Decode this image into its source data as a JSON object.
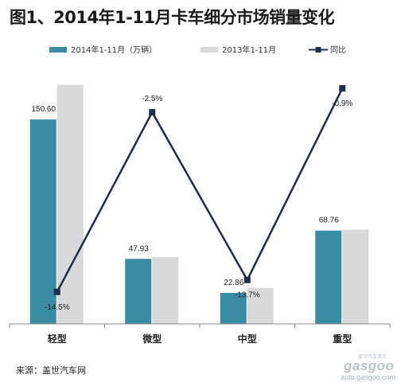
{
  "title": "图1、2014年1-11月卡车细分市场销量变化",
  "source_note": "来源：盖世汽车网",
  "watermark": {
    "brand": "gasgoo",
    "url": "auto.gasgoo.com",
    "tagline": "盖世汽车资讯"
  },
  "colors": {
    "series_2014": "#3a8ba4",
    "series_2013": "#d9d9d9",
    "line": "#1f2d4d"
  },
  "chart_data": {
    "type": "bar",
    "categories": [
      "轻型",
      "微型",
      "中型",
      "重型"
    ],
    "series": [
      {
        "name": "2014年1-11月（万辆）",
        "kind": "bar",
        "values": [
          150.6,
          47.93,
          22.86,
          68.76
        ],
        "show_labels": true
      },
      {
        "name": "2013年1-11月",
        "kind": "bar",
        "values": [
          176.1,
          49.2,
          26.5,
          69.4
        ],
        "show_labels": false
      },
      {
        "name": "同比",
        "kind": "line",
        "values": [
          -14.5,
          -2.5,
          -13.7,
          -0.9
        ],
        "labels": [
          "-14.5%",
          "-2.5%",
          "-13.7%",
          "-0.9%"
        ]
      }
    ],
    "bar_ylim": [
      0,
      180
    ],
    "line_ylim": [
      -16,
      0
    ],
    "legend_position": "top",
    "grid": false
  }
}
